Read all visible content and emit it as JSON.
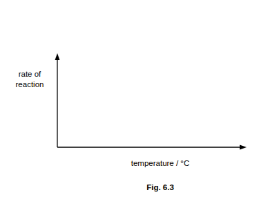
{
  "chart_data": {
    "type": "line",
    "title": "Fig. 6.3",
    "x_label": "temperature / °C",
    "y_label": [
      "rate of",
      "reaction"
    ],
    "tick_labels": false,
    "grid": false
  }
}
